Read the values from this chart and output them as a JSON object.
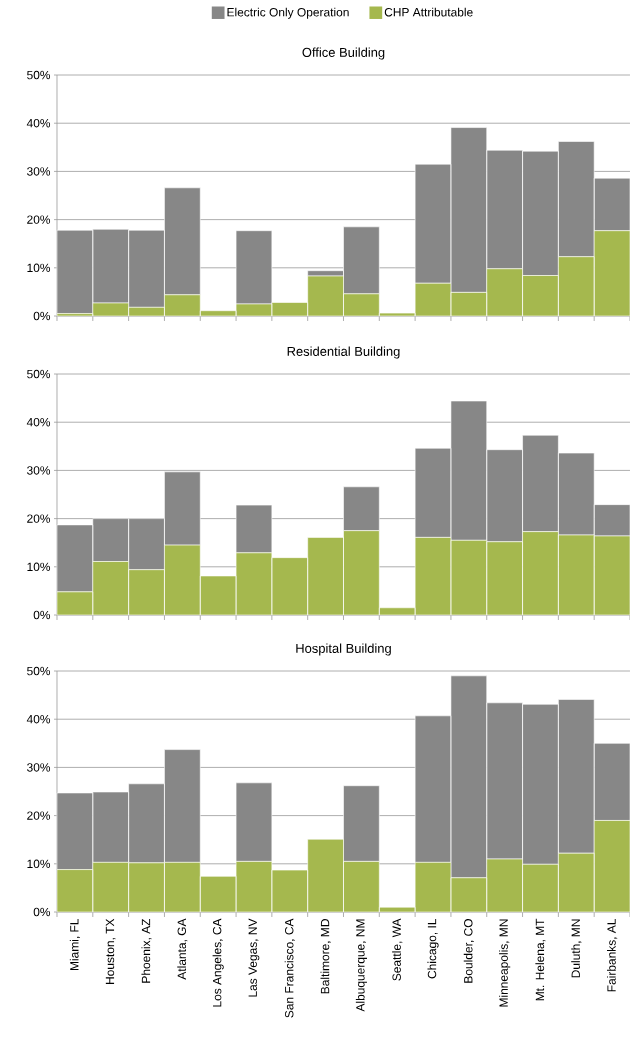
{
  "chart_data": [
    {
      "type": "bar",
      "stacked": true,
      "title": "Office Building",
      "legend": "top",
      "grid": "y",
      "tick_labels": "y",
      "categories": [
        null,
        null,
        null,
        null,
        null,
        null,
        null,
        null,
        null,
        null,
        null,
        null,
        null,
        null,
        null,
        null
      ],
      "ylim": [
        0,
        50
      ],
      "yticks": [
        {
          "value": 0,
          "label": "0%"
        },
        {
          "value": 10,
          "label": "10%"
        },
        {
          "value": 20,
          "label": "20%"
        },
        {
          "value": 30,
          "label": "30%"
        },
        {
          "value": 40,
          "label": "40%"
        },
        {
          "value": 50,
          "label": "50%"
        }
      ],
      "series": [
        {
          "name": "CHP Attributable",
          "color": "#a5b84e",
          "values": [
            0.5,
            2.7,
            1.8,
            4.4,
            1.1,
            2.5,
            2.8,
            8.3,
            4.6,
            0.6,
            6.8,
            4.9,
            9.8,
            8.4,
            12.3,
            17.7
          ]
        },
        {
          "name": "Electric Only Operation",
          "color": "#878787",
          "values": [
            17.3,
            15.3,
            16.0,
            22.2,
            0,
            15.2,
            0,
            1.1,
            13.9,
            0,
            24.7,
            34.2,
            24.6,
            25.8,
            23.9,
            10.9
          ]
        }
      ]
    },
    {
      "type": "bar",
      "stacked": true,
      "title": "Residential Building",
      "grid": "y",
      "tick_labels": "y",
      "categories": [
        null,
        null,
        null,
        null,
        null,
        null,
        null,
        null,
        null,
        null,
        null,
        null,
        null,
        null,
        null,
        null
      ],
      "ylim": [
        0,
        50
      ],
      "yticks": [
        {
          "value": 0,
          "label": "0%"
        },
        {
          "value": 10,
          "label": "10%"
        },
        {
          "value": 20,
          "label": "20%"
        },
        {
          "value": 30,
          "label": "30%"
        },
        {
          "value": 40,
          "label": "40%"
        },
        {
          "value": 50,
          "label": "50%"
        }
      ],
      "series": [
        {
          "color": "#a5b84e",
          "values": [
            4.8,
            11.1,
            9.4,
            14.5,
            8.1,
            12.9,
            11.9,
            16.1,
            17.5,
            1.5,
            16.1,
            15.5,
            15.2,
            17.3,
            16.6,
            16.4
          ]
        },
        {
          "color": "#878787",
          "values": [
            13.9,
            8.9,
            10.6,
            15.2,
            0,
            9.9,
            0,
            0,
            9.1,
            0,
            18.5,
            28.9,
            19.1,
            20.0,
            17.0,
            6.5
          ]
        }
      ]
    },
    {
      "type": "bar",
      "stacked": true,
      "title": "Hospital Building",
      "grid": "y",
      "categories": [
        "Miami, FL",
        "Houston, TX",
        "Phoenix, AZ",
        "Atlanta, GA",
        "Los Angeles, CA",
        "Las Vegas, NV",
        "San Francisco, CA",
        "Baltimore, MD",
        "Albuquerque, NM",
        "Seattle, WA",
        "Chicago, IL",
        "Boulder, CO",
        "Minneapolis, MN",
        "Mt. Helena, MT",
        "Duluth, MN",
        "Fairbanks, AL"
      ],
      "ylim": [
        0,
        50
      ],
      "yticks": [
        {
          "value": 0,
          "label": "0%"
        },
        {
          "value": 10,
          "label": "10%"
        },
        {
          "value": 20,
          "label": "20%"
        },
        {
          "value": 30,
          "label": "30%"
        },
        {
          "value": 40,
          "label": "40%"
        },
        {
          "value": 50,
          "label": "50%"
        }
      ],
      "series": [
        {
          "color": "#a5b84e",
          "values": [
            8.8,
            10.3,
            10.2,
            10.3,
            7.4,
            10.5,
            8.7,
            15.1,
            10.5,
            1.0,
            10.3,
            7.1,
            11.0,
            9.9,
            12.2,
            19.0
          ]
        },
        {
          "color": "#878787",
          "values": [
            15.9,
            14.6,
            16.4,
            23.4,
            0,
            16.3,
            0,
            0,
            15.7,
            0,
            30.4,
            41.9,
            32.4,
            33.2,
            31.9,
            16.0
          ]
        }
      ]
    }
  ]
}
